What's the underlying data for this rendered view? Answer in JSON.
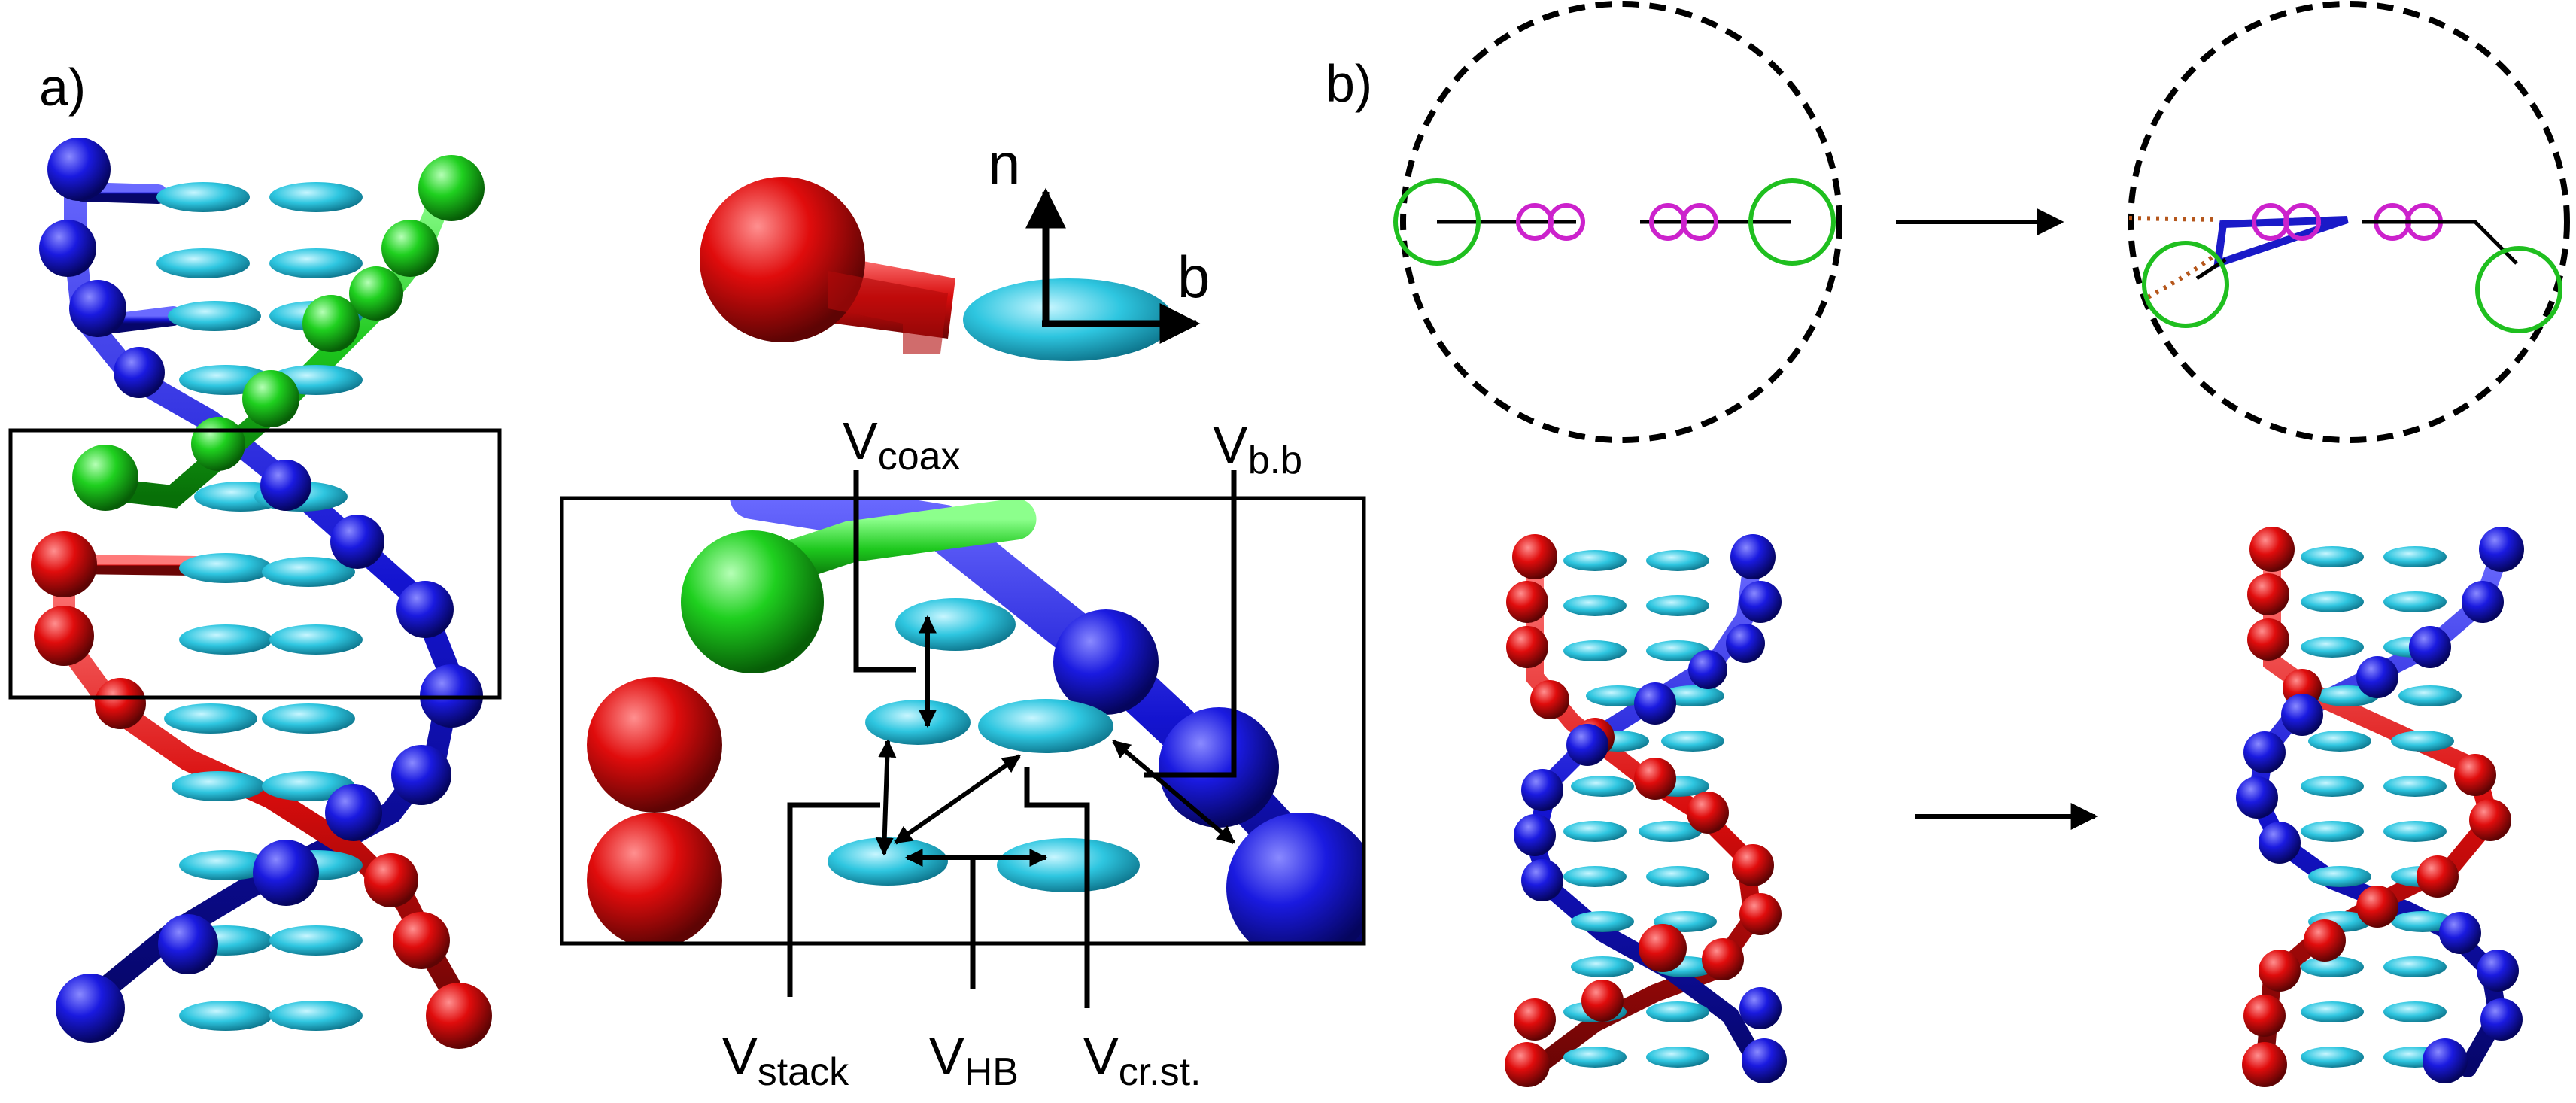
{
  "panels": {
    "a_label": "a)",
    "b_label": "b)"
  },
  "axes": {
    "normal_label": "n",
    "backbone_label": "b"
  },
  "interactions": [
    {
      "base": "V",
      "sub": "coax"
    },
    {
      "base": "V",
      "sub": "b.b"
    },
    {
      "base": "V",
      "sub": "stack"
    },
    {
      "base": "V",
      "sub": "HB"
    },
    {
      "base": "V",
      "sub": "cr.st."
    }
  ],
  "colors": {
    "strand_blue": "#1212d8",
    "strand_red": "#dd0d0d",
    "strand_green": "#1fcc1f",
    "base_cyan": "#29c3dd",
    "ring_green": "#1fbf1f",
    "ring_magenta": "#cc22cc",
    "dotted_brown": "#b5561b"
  }
}
